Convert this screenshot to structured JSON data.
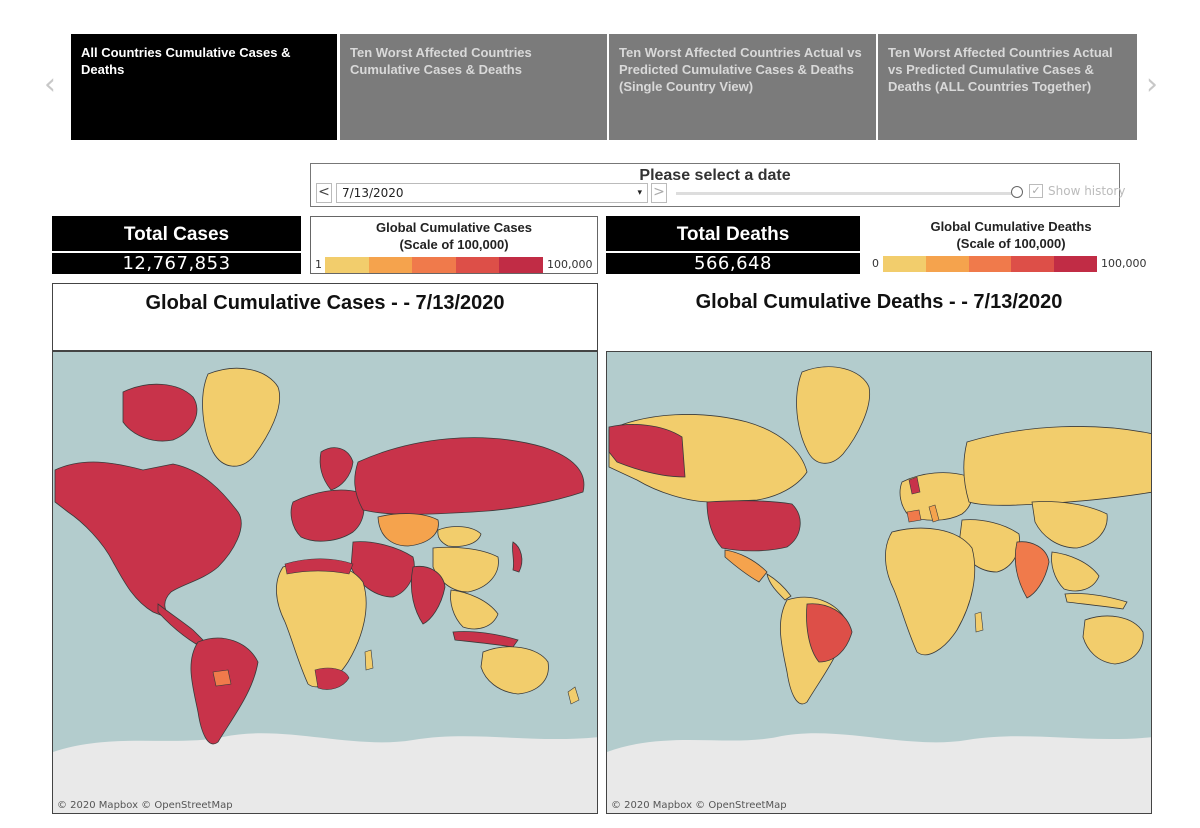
{
  "tabs": [
    {
      "label": "All Countries Cumulative Cases & Deaths",
      "active": true
    },
    {
      "label": "Ten Worst Affected Countries Cumulative Cases & Deaths",
      "active": false
    },
    {
      "label": "Ten Worst Affected Countries Actual vs Predicted Cumulative Cases & Deaths (Single Country View)",
      "active": false
    },
    {
      "label": "Ten Worst Affected Countries Actual vs Predicted Cumulative Cases & Deaths (ALL Countries Together)",
      "active": false
    }
  ],
  "date_filter": {
    "title": "Please select a date",
    "selected_date": "7/13/2020",
    "prev_symbol": "<",
    "next_symbol": ">",
    "caret": "▾",
    "show_history_label": "Show history",
    "show_history_checked": true,
    "check_mark": "✓"
  },
  "kpis": {
    "cases": {
      "title": "Total Cases",
      "value": "12,767,853"
    },
    "deaths": {
      "title": "Total Deaths",
      "value": "566,648"
    }
  },
  "legends": {
    "cases": {
      "title_line1": "Global Cumulative Cases",
      "title_line2": "(Scale of 100,000)",
      "min": "1",
      "max": "100,000"
    },
    "deaths": {
      "title_line1": "Global Cumulative Deaths",
      "title_line2": "(Scale of 100,000)",
      "min": "0",
      "max": "100,000"
    }
  },
  "legend_colors": [
    "#f2cd6c",
    "#f5a34d",
    "#f07a4b",
    "#dd4f48",
    "#c12c45"
  ],
  "maps": {
    "cases": {
      "title": "Global Cumulative Cases - - 7/13/2020",
      "attribution": "© 2020 Mapbox  © OpenStreetMap"
    },
    "deaths": {
      "title": "Global Cumulative Deaths - - 7/13/2020",
      "attribution": "© 2020 Mapbox  © OpenStreetMap"
    }
  },
  "colors": {
    "water": "#b3cccd",
    "ice": "#e9e9e9",
    "low": "#f2cd6c",
    "mid_low": "#f5a34d",
    "mid": "#f07a4b",
    "high": "#dd4f48",
    "highest": "#c8334a",
    "tab_active": "#000000",
    "tab_inactive": "#7b7b7b"
  },
  "icons": {
    "left_arrow": "‹",
    "right_arrow": "›"
  }
}
